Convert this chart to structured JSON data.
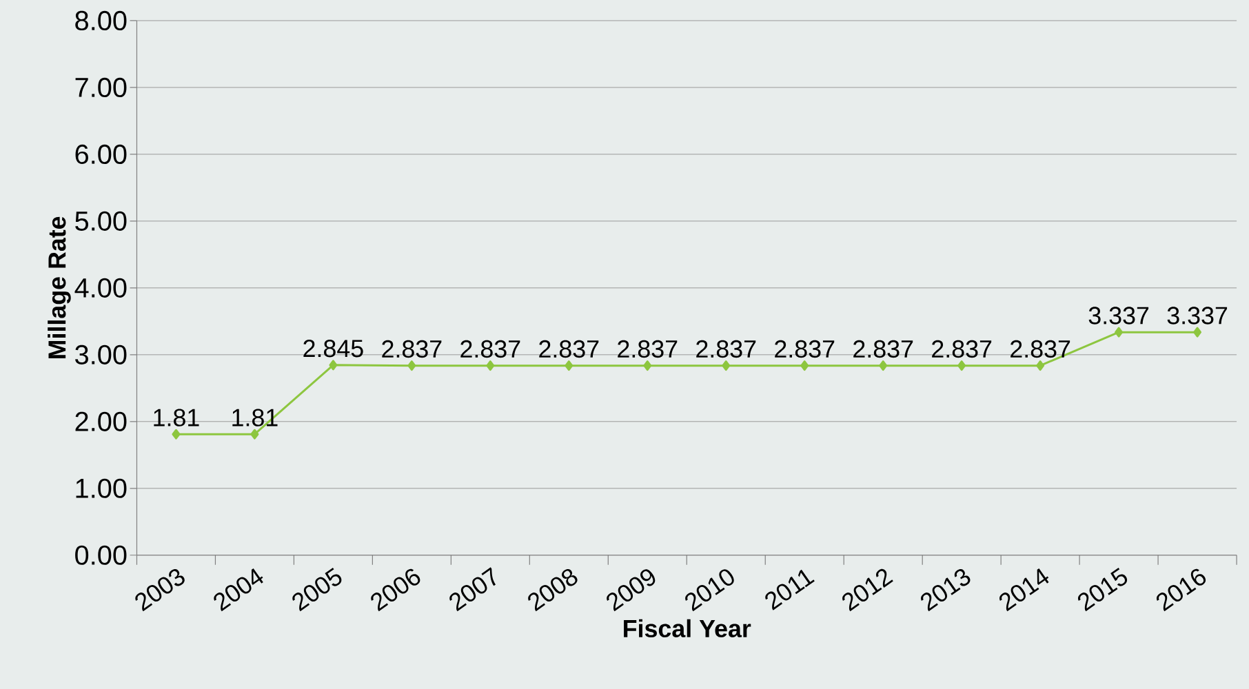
{
  "chart_data": {
    "type": "line",
    "xlabel": "Fiscal Year",
    "ylabel": "Millage Rate",
    "categories": [
      "2003",
      "2004",
      "2005",
      "2006",
      "2007",
      "2008",
      "2009",
      "2010",
      "2011",
      "2012",
      "2013",
      "2014",
      "2015",
      "2016"
    ],
    "values": [
      1.81,
      1.81,
      2.845,
      2.837,
      2.837,
      2.837,
      2.837,
      2.837,
      2.837,
      2.837,
      2.837,
      2.837,
      3.337,
      3.337
    ],
    "color": "#8dc63f",
    "marker": "diamond",
    "line_style": "solid",
    "data_labels": true,
    "grid": "y",
    "ylim": [
      0,
      8
    ],
    "yticks": [
      {
        "value": 0,
        "label": "0.00"
      },
      {
        "value": 1,
        "label": "1.00"
      },
      {
        "value": 2,
        "label": "2.00"
      },
      {
        "value": 3,
        "label": "3.00"
      },
      {
        "value": 4,
        "label": "4.00"
      },
      {
        "value": 5,
        "label": "5.00"
      },
      {
        "value": 6,
        "label": "6.00"
      },
      {
        "value": 7,
        "label": "7.00"
      },
      {
        "value": 8,
        "label": "8.00"
      }
    ]
  }
}
